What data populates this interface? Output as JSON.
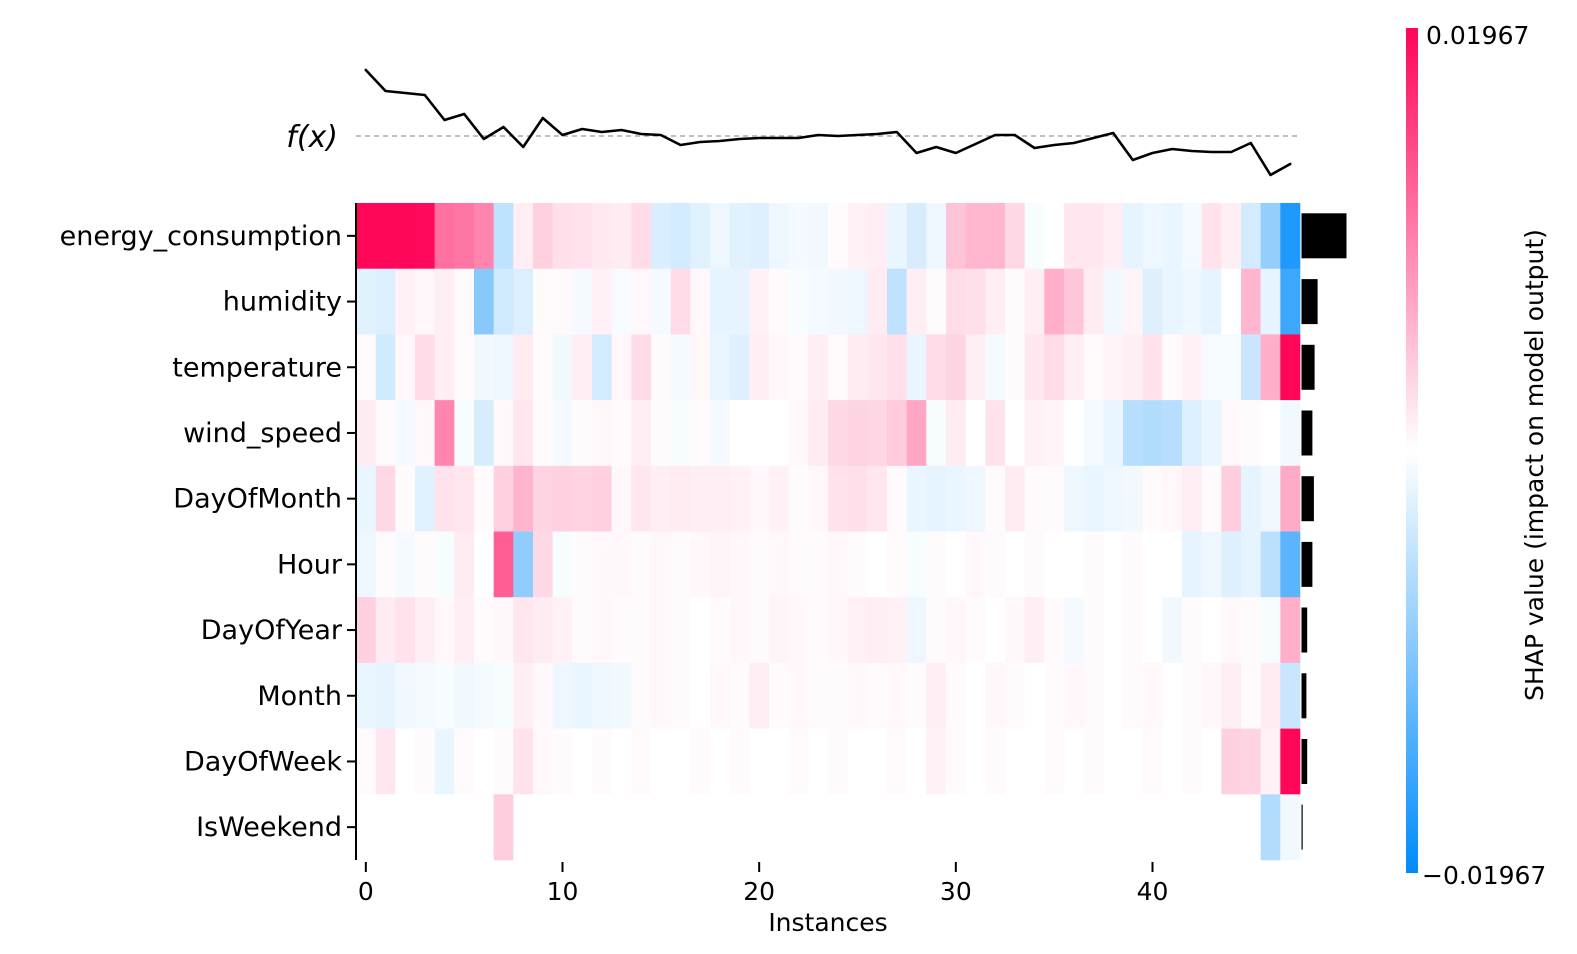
{
  "figure": {
    "fx_label": "f(x)",
    "xlabel": "Instances",
    "colorbar_top_label": "0.01967",
    "colorbar_bottom_label": "−0.01967",
    "colorbar_axis_label": "SHAP value (impact on model output)"
  },
  "chart_data": {
    "type": "heatmap",
    "title": "",
    "xlabel": "Instances",
    "ylabel": "",
    "x_ticks": [
      0,
      10,
      20,
      30,
      40
    ],
    "x_tick_labels": [
      "0",
      "10",
      "20",
      "30",
      "40"
    ],
    "n_instances": 48,
    "legend_position": "right-colorbar",
    "grid": false,
    "features": [
      "energy_consumption",
      "humidity",
      "temperature",
      "wind_speed",
      "DayOfMonth",
      "Hour",
      "DayOfYear",
      "Month",
      "DayOfWeek",
      "IsWeekend"
    ],
    "colorbar": {
      "label": "SHAP value (impact on model output)",
      "vmin": -0.01967,
      "vmax": 0.01967,
      "tick_labels": [
        "0.01967",
        "−0.01967"
      ],
      "pos_color": "#ff0458",
      "neg_color": "#008bfb",
      "mid_color": "#ffffff"
    },
    "fx_line": {
      "label": "f(x)",
      "color": "#000000",
      "baseline_color": "#9a9a9a",
      "values": [
        0.0198,
        0.0135,
        0.0129,
        0.0123,
        0.0048,
        0.0066,
        -0.0009,
        0.0027,
        -0.0033,
        0.0054,
        0.0003,
        0.0021,
        0.0012,
        0.0018,
        0.0006,
        0.0003,
        -0.0027,
        -0.0018,
        -0.0015,
        -0.0009,
        -0.0006,
        -0.0006,
        -0.0006,
        0.0003,
        0.0,
        0.0003,
        0.0006,
        0.0012,
        -0.0051,
        -0.0033,
        -0.0051,
        -0.0024,
        0.0003,
        0.0003,
        -0.0036,
        -0.0027,
        -0.0021,
        -0.0006,
        0.0009,
        -0.0072,
        -0.0051,
        -0.0039,
        -0.0045,
        -0.0048,
        -0.0048,
        -0.0021,
        -0.0117,
        -0.0084
      ]
    },
    "matrix": [
      [
        0.0195,
        0.0195,
        0.0195,
        0.0192,
        0.0105,
        0.01,
        0.0088,
        -0.0042,
        0.001,
        0.003,
        0.002,
        0.0018,
        0.0014,
        0.0012,
        0.0022,
        -0.0024,
        -0.0028,
        -0.0018,
        -0.001,
        -0.0018,
        -0.002,
        -0.001,
        -0.0006,
        -0.0008,
        0.0002,
        0.0008,
        0.001,
        -0.0012,
        -0.0025,
        -0.001,
        0.004,
        0.005,
        0.005,
        0.0025,
        -0.0004,
        0.0,
        0.0015,
        0.0015,
        0.001,
        -0.0015,
        -0.001,
        -0.0012,
        -0.0006,
        0.0018,
        0.001,
        -0.0028,
        -0.0075,
        -0.017
      ],
      [
        -0.0018,
        -0.0022,
        0.0008,
        0.0004,
        0.001,
        0.0002,
        -0.0085,
        -0.003,
        -0.0022,
        0.0002,
        0.0003,
        -0.0006,
        0.0008,
        -0.0005,
        0.0004,
        -0.0006,
        0.0022,
        0.0004,
        -0.0015,
        -0.0014,
        0.0008,
        0.0002,
        -0.0004,
        -0.0006,
        -0.0008,
        -0.001,
        0.0012,
        -0.0042,
        0.001,
        0.0002,
        0.0022,
        0.002,
        0.001,
        0.0002,
        0.001,
        0.0055,
        0.0038,
        0.0012,
        -0.0008,
        0.0006,
        -0.002,
        -0.0012,
        -0.001,
        -0.0015,
        0.0,
        0.005,
        -0.0015,
        -0.0145
      ],
      [
        0.0002,
        -0.003,
        0.0004,
        0.0022,
        0.001,
        0.0002,
        -0.0008,
        -0.001,
        0.0012,
        0.0002,
        -0.0008,
        0.001,
        -0.0028,
        0.0004,
        0.0022,
        0.0002,
        -0.0006,
        0.0004,
        -0.0012,
        -0.002,
        0.001,
        0.0004,
        0.0002,
        0.001,
        0.0002,
        0.0012,
        0.0015,
        0.002,
        -0.0012,
        0.0022,
        0.0028,
        0.001,
        -0.0006,
        0.0002,
        0.0015,
        0.0022,
        0.001,
        0.0002,
        0.0006,
        0.001,
        0.0018,
        0.0002,
        0.0008,
        -0.0005,
        -0.0005,
        -0.0035,
        0.0055,
        0.0195
      ],
      [
        0.0012,
        0.0002,
        -0.0006,
        0.0004,
        0.0088,
        -0.0004,
        -0.0025,
        0.0004,
        0.0015,
        0.0002,
        -0.0006,
        0.0002,
        0.0004,
        0.0002,
        0.001,
        0.0002,
        -0.0004,
        0.0002,
        -0.0006,
        0.0,
        0.0,
        0.0,
        0.0004,
        0.0012,
        0.0025,
        0.0028,
        0.0026,
        0.0035,
        0.0062,
        -0.0004,
        0.0012,
        0.0,
        0.0018,
        0.0,
        0.0008,
        0.0006,
        0.0,
        -0.0006,
        -0.0012,
        -0.0048,
        -0.0052,
        -0.0048,
        -0.0022,
        -0.0012,
        0.0004,
        0.0002,
        0.0,
        -0.0008
      ],
      [
        -0.0012,
        0.0025,
        0.0002,
        -0.0018,
        0.0018,
        0.0015,
        0.0002,
        0.003,
        0.0052,
        0.0028,
        0.003,
        0.0028,
        0.003,
        0.0004,
        0.0015,
        0.001,
        0.0012,
        0.001,
        0.001,
        0.0008,
        0.0004,
        0.0008,
        0.0002,
        0.0004,
        0.0018,
        0.002,
        0.0015,
        0.0002,
        -0.0012,
        -0.0015,
        -0.0012,
        -0.001,
        0.0002,
        0.0012,
        0.0002,
        0.0002,
        -0.001,
        -0.0012,
        -0.001,
        -0.0008,
        0.0002,
        0.0004,
        0.001,
        0.0002,
        0.0032,
        -0.0015,
        -0.0008,
        0.0058
      ],
      [
        -0.001,
        0.0002,
        -0.0006,
        0.0002,
        -0.0004,
        0.0012,
        0.0,
        0.012,
        -0.0078,
        0.0025,
        -0.0004,
        0.0002,
        0.0004,
        0.0004,
        0.0002,
        0.0004,
        0.0002,
        0.0004,
        0.0006,
        0.0004,
        0.0002,
        0.0004,
        0.0002,
        0.0002,
        0.0004,
        0.0002,
        0.0,
        0.0002,
        -0.0004,
        0.0002,
        0.0,
        0.0004,
        0.0002,
        0.0,
        0.0002,
        0.0,
        0.0,
        0.0002,
        0.0,
        0.0002,
        0.0,
        0.0,
        -0.0015,
        -0.001,
        -0.002,
        -0.0015,
        -0.0045,
        -0.012
      ],
      [
        0.003,
        0.0012,
        0.0018,
        0.001,
        0.0004,
        0.001,
        0.0002,
        0.0004,
        0.0015,
        0.0012,
        0.0008,
        0.0002,
        0.0004,
        0.0002,
        0.0002,
        0.0004,
        0.0002,
        0.0,
        0.0002,
        0.0004,
        0.0002,
        0.0006,
        0.0004,
        0.0002,
        0.0004,
        0.0008,
        0.001,
        0.0008,
        -0.001,
        0.0002,
        0.0004,
        0.0002,
        0.0,
        0.0004,
        0.001,
        0.0002,
        -0.0006,
        0.0002,
        0.0,
        0.0002,
        0.0,
        -0.0008,
        0.0002,
        0.0,
        0.0004,
        0.0002,
        -0.0004,
        0.0055
      ],
      [
        -0.0012,
        -0.0015,
        -0.0008,
        -0.0006,
        -0.0004,
        -0.0008,
        -0.0006,
        -0.0004,
        0.001,
        0.0004,
        -0.001,
        -0.0012,
        -0.001,
        -0.0008,
        0.0002,
        0.0004,
        0.0002,
        0.0,
        0.0004,
        0.0002,
        0.001,
        0.0002,
        0.0004,
        0.0002,
        0.0002,
        0.0004,
        0.0002,
        0.0004,
        0.0002,
        0.001,
        0.0002,
        0.0,
        0.0004,
        0.0002,
        0.0,
        0.0002,
        0.0004,
        0.0002,
        0.0,
        0.0002,
        0.0004,
        0.0,
        0.0002,
        0.0004,
        0.001,
        0.0002,
        0.0012,
        -0.0035
      ],
      [
        0.0002,
        0.0015,
        0.0,
        0.0002,
        -0.0012,
        0.0002,
        0.0,
        0.0002,
        0.0018,
        0.0004,
        0.0002,
        0.0,
        0.0002,
        0.0,
        0.0002,
        0.0,
        0.0,
        0.0002,
        0.0,
        0.0002,
        0.0,
        0.0,
        0.0002,
        0.0,
        0.0002,
        0.0,
        0.0,
        0.0002,
        0.0,
        0.0008,
        0.0002,
        0.0,
        0.0002,
        0.0,
        0.0,
        0.0002,
        0.0,
        0.0002,
        0.0,
        0.0,
        0.0002,
        0.0,
        0.0002,
        0.0,
        0.003,
        0.0028,
        0.0008,
        0.0195
      ],
      [
        0.0,
        0.0,
        0.0,
        0.0,
        0.0,
        0.0,
        0.0,
        0.0032,
        0.0,
        0.0,
        0.0,
        0.0,
        0.0,
        0.0,
        0.0,
        0.0,
        0.0,
        0.0,
        0.0,
        0.0,
        0.0,
        0.0,
        0.0,
        0.0,
        0.0,
        0.0,
        0.0,
        0.0,
        0.0,
        0.0,
        0.0,
        0.0,
        0.0,
        0.0,
        0.0,
        0.0,
        0.0,
        0.0,
        0.0,
        0.0,
        0.0,
        0.0,
        0.0,
        0.0,
        0.0,
        0.0,
        -0.0052,
        -0.0008
      ]
    ],
    "importance_bars": {
      "color": "#000000",
      "values": [
        0.0062,
        0.0023,
        0.0019,
        0.0016,
        0.0018,
        0.0016,
        0.0009,
        0.0008,
        0.0009,
        0.0003
      ]
    }
  }
}
